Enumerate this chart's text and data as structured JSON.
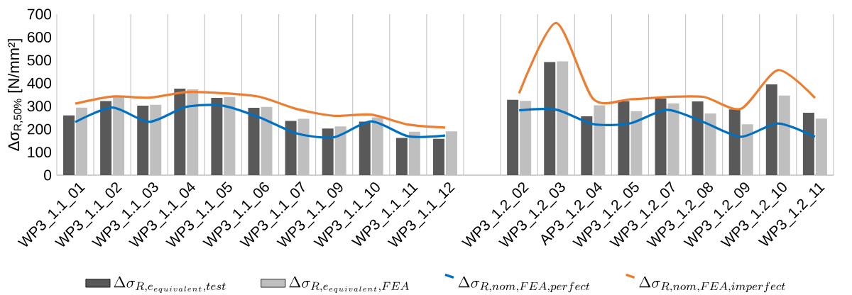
{
  "chart_data": {
    "type": "bar",
    "ylabel": "Δσ$_{R,50%}$ [N/mm²]",
    "categories": [
      "WP3_1.1_01",
      "WP3_1.1_02",
      "WP3_1.1_03",
      "WP3_1.1_04",
      "WP3_1.1_05",
      "WP3_1.1_06",
      "WP3_1.1_07",
      "WP3_1.1_09",
      "WP3_1.1_10",
      "WP3_1.1_11",
      "WP3_1.1_12",
      null,
      "WP3_1.2_02",
      "WP3_1.2_03",
      "AP3_1.2_04",
      "WP3_1.2_05",
      "WP3_1.2_07",
      "WP3_1.2_08",
      "WP3_1.2_09",
      "WP3_1.2_10",
      "WP3_1.2_11"
    ],
    "series": [
      {
        "name": "\\Delta\\sigma_{R,e_{equivalent},test}",
        "color": "#595959",
        "values": [
          260,
          322,
          302,
          376,
          336,
          293,
          236,
          203,
          233,
          162,
          158,
          null,
          328,
          492,
          256,
          322,
          334,
          321,
          286,
          395,
          271
        ]
      },
      {
        "name": "\\Delta\\sigma_{R,e_{equivalent},FEA}",
        "color": "#bfbfbf",
        "values": [
          294,
          342,
          306,
          373,
          340,
          297,
          245,
          212,
          251,
          189,
          190,
          null,
          323,
          495,
          304,
          278,
          312,
          268,
          221,
          346,
          246
        ]
      },
      {
        "name": "\\Delta\\sigma_{R,nom,FEA,perfect}",
        "type": "line",
        "color": "#0070c0",
        "values": [
          231,
          294,
          232,
          297,
          302,
          250,
          181,
          165,
          234,
          169,
          172,
          null,
          282,
          285,
          222,
          225,
          284,
          230,
          167,
          225,
          167
        ]
      },
      {
        "name": "\\Delta\\sigma_{R,nom,FEA,imperfect}",
        "type": "line",
        "color": "#ed7d31",
        "values": [
          311,
          342,
          337,
          361,
          356,
          340,
          287,
          258,
          263,
          220,
          207,
          null,
          356,
          662,
          332,
          330,
          340,
          340,
          289,
          457,
          336
        ]
      }
    ],
    "ylim": [
      0,
      700
    ],
    "yticks": [
      0,
      100,
      200,
      300,
      400,
      500,
      600,
      700
    ],
    "grid": "x",
    "legend": "bottom"
  }
}
